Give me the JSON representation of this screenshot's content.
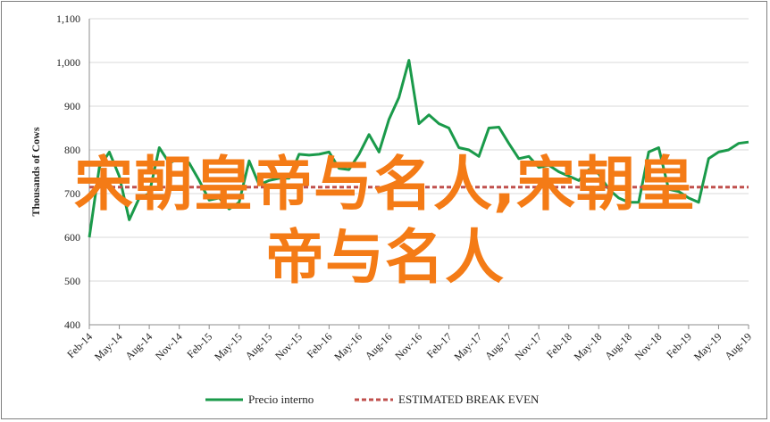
{
  "chart_data": {
    "type": "line",
    "title": "",
    "xlabel": "",
    "ylabel": "Thousands of Cows",
    "ylim": [
      400,
      1100
    ],
    "yticks": [
      400,
      500,
      600,
      700,
      800,
      900,
      1000,
      1100
    ],
    "ytick_labels": [
      "400",
      "500",
      "600",
      "700",
      "800",
      "900",
      "1,000",
      "1,100"
    ],
    "xtick_labels": [
      "Feb-14",
      "May-14",
      "Aug-14",
      "Nov-14",
      "Feb-15",
      "May-15",
      "Aug-15",
      "Nov-15",
      "Feb-16",
      "May-16",
      "Aug-16",
      "Nov-16",
      "Feb-17",
      "May-17",
      "Aug-17",
      "Nov-17",
      "Feb-18",
      "May-18",
      "Aug-18",
      "Nov-18",
      "Feb-19",
      "May-19",
      "Aug-19"
    ],
    "grid": true,
    "legend_position": "bottom",
    "series": [
      {
        "name": "Precio interno",
        "color": "#1a9a4a",
        "values": [
          600,
          760,
          795,
          740,
          640,
          690,
          700,
          805,
          770,
          780,
          770,
          730,
          685,
          690,
          665,
          680,
          775,
          720,
          730,
          735,
          735,
          790,
          788,
          790,
          795,
          758,
          755,
          790,
          835,
          795,
          870,
          920,
          1005,
          860,
          880,
          860,
          850,
          805,
          800,
          785,
          850,
          852,
          815,
          780,
          785,
          760,
          765,
          750,
          740,
          730,
          755,
          745,
          710,
          690,
          680,
          680,
          795,
          805,
          710,
          705,
          690,
          680,
          780,
          795,
          800,
          815,
          818
        ]
      },
      {
        "name": "ESTIMATED BREAK EVEN",
        "color": "#c0504d",
        "dashed": true,
        "values": [
          715,
          715,
          715,
          715,
          715,
          715,
          715,
          715,
          715,
          715,
          715,
          715,
          715,
          715,
          715,
          715,
          715,
          715,
          715,
          715,
          715,
          715,
          715,
          715,
          715,
          715,
          715,
          715,
          715,
          715,
          715,
          715,
          715,
          715,
          715,
          715,
          715,
          715,
          715,
          715,
          715,
          715,
          715,
          715,
          715,
          715,
          715,
          715,
          715,
          715,
          715,
          715,
          715,
          715,
          715,
          715,
          715,
          715,
          715,
          715,
          715,
          715,
          715,
          715,
          715,
          715,
          715
        ]
      }
    ]
  },
  "overlay": {
    "line1": "宋朝皇帝与名人,宋朝皇",
    "line2": "帝与名人"
  }
}
